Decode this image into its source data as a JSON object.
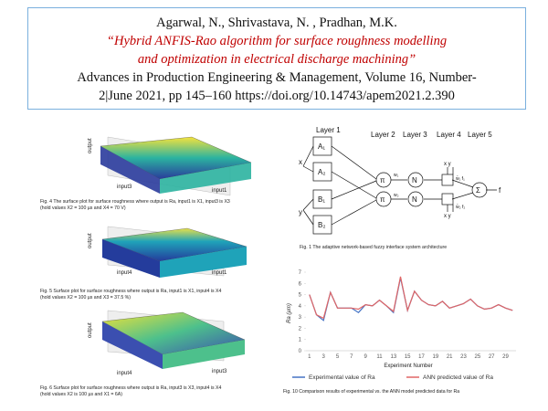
{
  "citation": {
    "authors": "Agarwal,  N., Shrivastava, N. , Pradhan, M.K.",
    "title": [
      "“Hybrid ANFIS-Rao algorithm for surface roughness modelling",
      "and optimization in electrical discharge machining”"
    ],
    "journal": [
      "Advances in Production Engineering & Management, Volume  16, Number-",
      "2|June    2021, pp 145–160  https://doi.org/10.14743/apem2021.2.390"
    ]
  },
  "figures": [
    {
      "zlabel": "output",
      "xlabel": "input3",
      "ylabel": "input1",
      "caption": [
        "Fig. 4 The surface plot for surface roughness where output is Ra, input1 is X1, input3 is X3",
        "(hold values X2 = 100 µs and X4 = 70 V)"
      ]
    },
    {
      "zlabel": "output",
      "xlabel": "input4",
      "ylabel": "input1",
      "caption": [
        "Fig. 5 Surface plot for surface roughness where output is Ra, input1 is X1, input4 is X4",
        "(hold values X2 = 100 µs and X3 = 37.5 %)"
      ]
    },
    {
      "zlabel": "output",
      "xlabel": "input4",
      "ylabel": "input3",
      "caption": [
        "Fig. 6 Surface plot for surface roughness where output is Ra, input3 is X3, input4 is X4",
        "(hold values X2 is 100 µs and X1 = 6A)"
      ]
    }
  ],
  "diagram": {
    "layers": [
      "Layer 1",
      "Layer 2",
      "Layer 3",
      "Layer 4",
      "Layer 5"
    ],
    "inputs": [
      "x",
      "y"
    ],
    "nodes": [
      "A₁",
      "A₂",
      "B₁",
      "B₂"
    ],
    "product": "π",
    "normalize": "N",
    "sum": "Σ",
    "output": "f",
    "weights": [
      "w₁",
      "w₂",
      "w̄₁ f₁",
      "w̄₂ f₂"
    ],
    "layer4_inputs": "x y",
    "caption": "Fig. 1 The adaptive network-based fuzzy interface system architecture"
  },
  "chart_data": {
    "type": "line",
    "y_label": "Ra (µm)",
    "x_label": "Experiment Number",
    "caption": "Fig. 10 Comparison results of experimental vs. the ANN model predicted data for Ra",
    "categories": [
      1,
      null,
      3,
      null,
      5,
      null,
      7,
      null,
      9,
      null,
      11,
      null,
      13,
      null,
      15,
      null,
      17,
      null,
      19,
      null,
      21,
      null,
      23,
      null,
      25,
      null,
      27,
      null,
      29,
      null
    ],
    "series": [
      {
        "name": "Experimental value of Ra",
        "color": "#4472c4",
        "values": [
          5.0,
          3.2,
          2.7,
          5.2,
          3.8,
          3.8,
          3.8,
          3.4,
          4.1,
          4.0,
          4.5,
          4.0,
          3.4,
          6.5,
          3.6,
          5.3,
          4.5,
          4.1,
          4.0,
          4.4,
          3.8,
          4.0,
          4.2,
          4.6,
          4.0,
          3.7,
          3.8,
          4.1,
          3.8,
          3.6
        ]
      },
      {
        "name": "ANN predicted value of Ra",
        "color": "#e06666",
        "values": [
          5.0,
          3.2,
          2.9,
          5.2,
          3.8,
          3.8,
          3.8,
          3.7,
          4.1,
          4.0,
          4.5,
          4.0,
          3.5,
          6.6,
          3.6,
          5.3,
          4.5,
          4.1,
          4.0,
          4.4,
          3.8,
          4.0,
          4.2,
          4.6,
          4.0,
          3.7,
          3.8,
          4.1,
          3.8,
          3.6
        ]
      }
    ],
    "ylim": [
      0,
      7
    ],
    "yticks": [
      0,
      1,
      2,
      3,
      4,
      5,
      6,
      7
    ],
    "grid": false
  }
}
